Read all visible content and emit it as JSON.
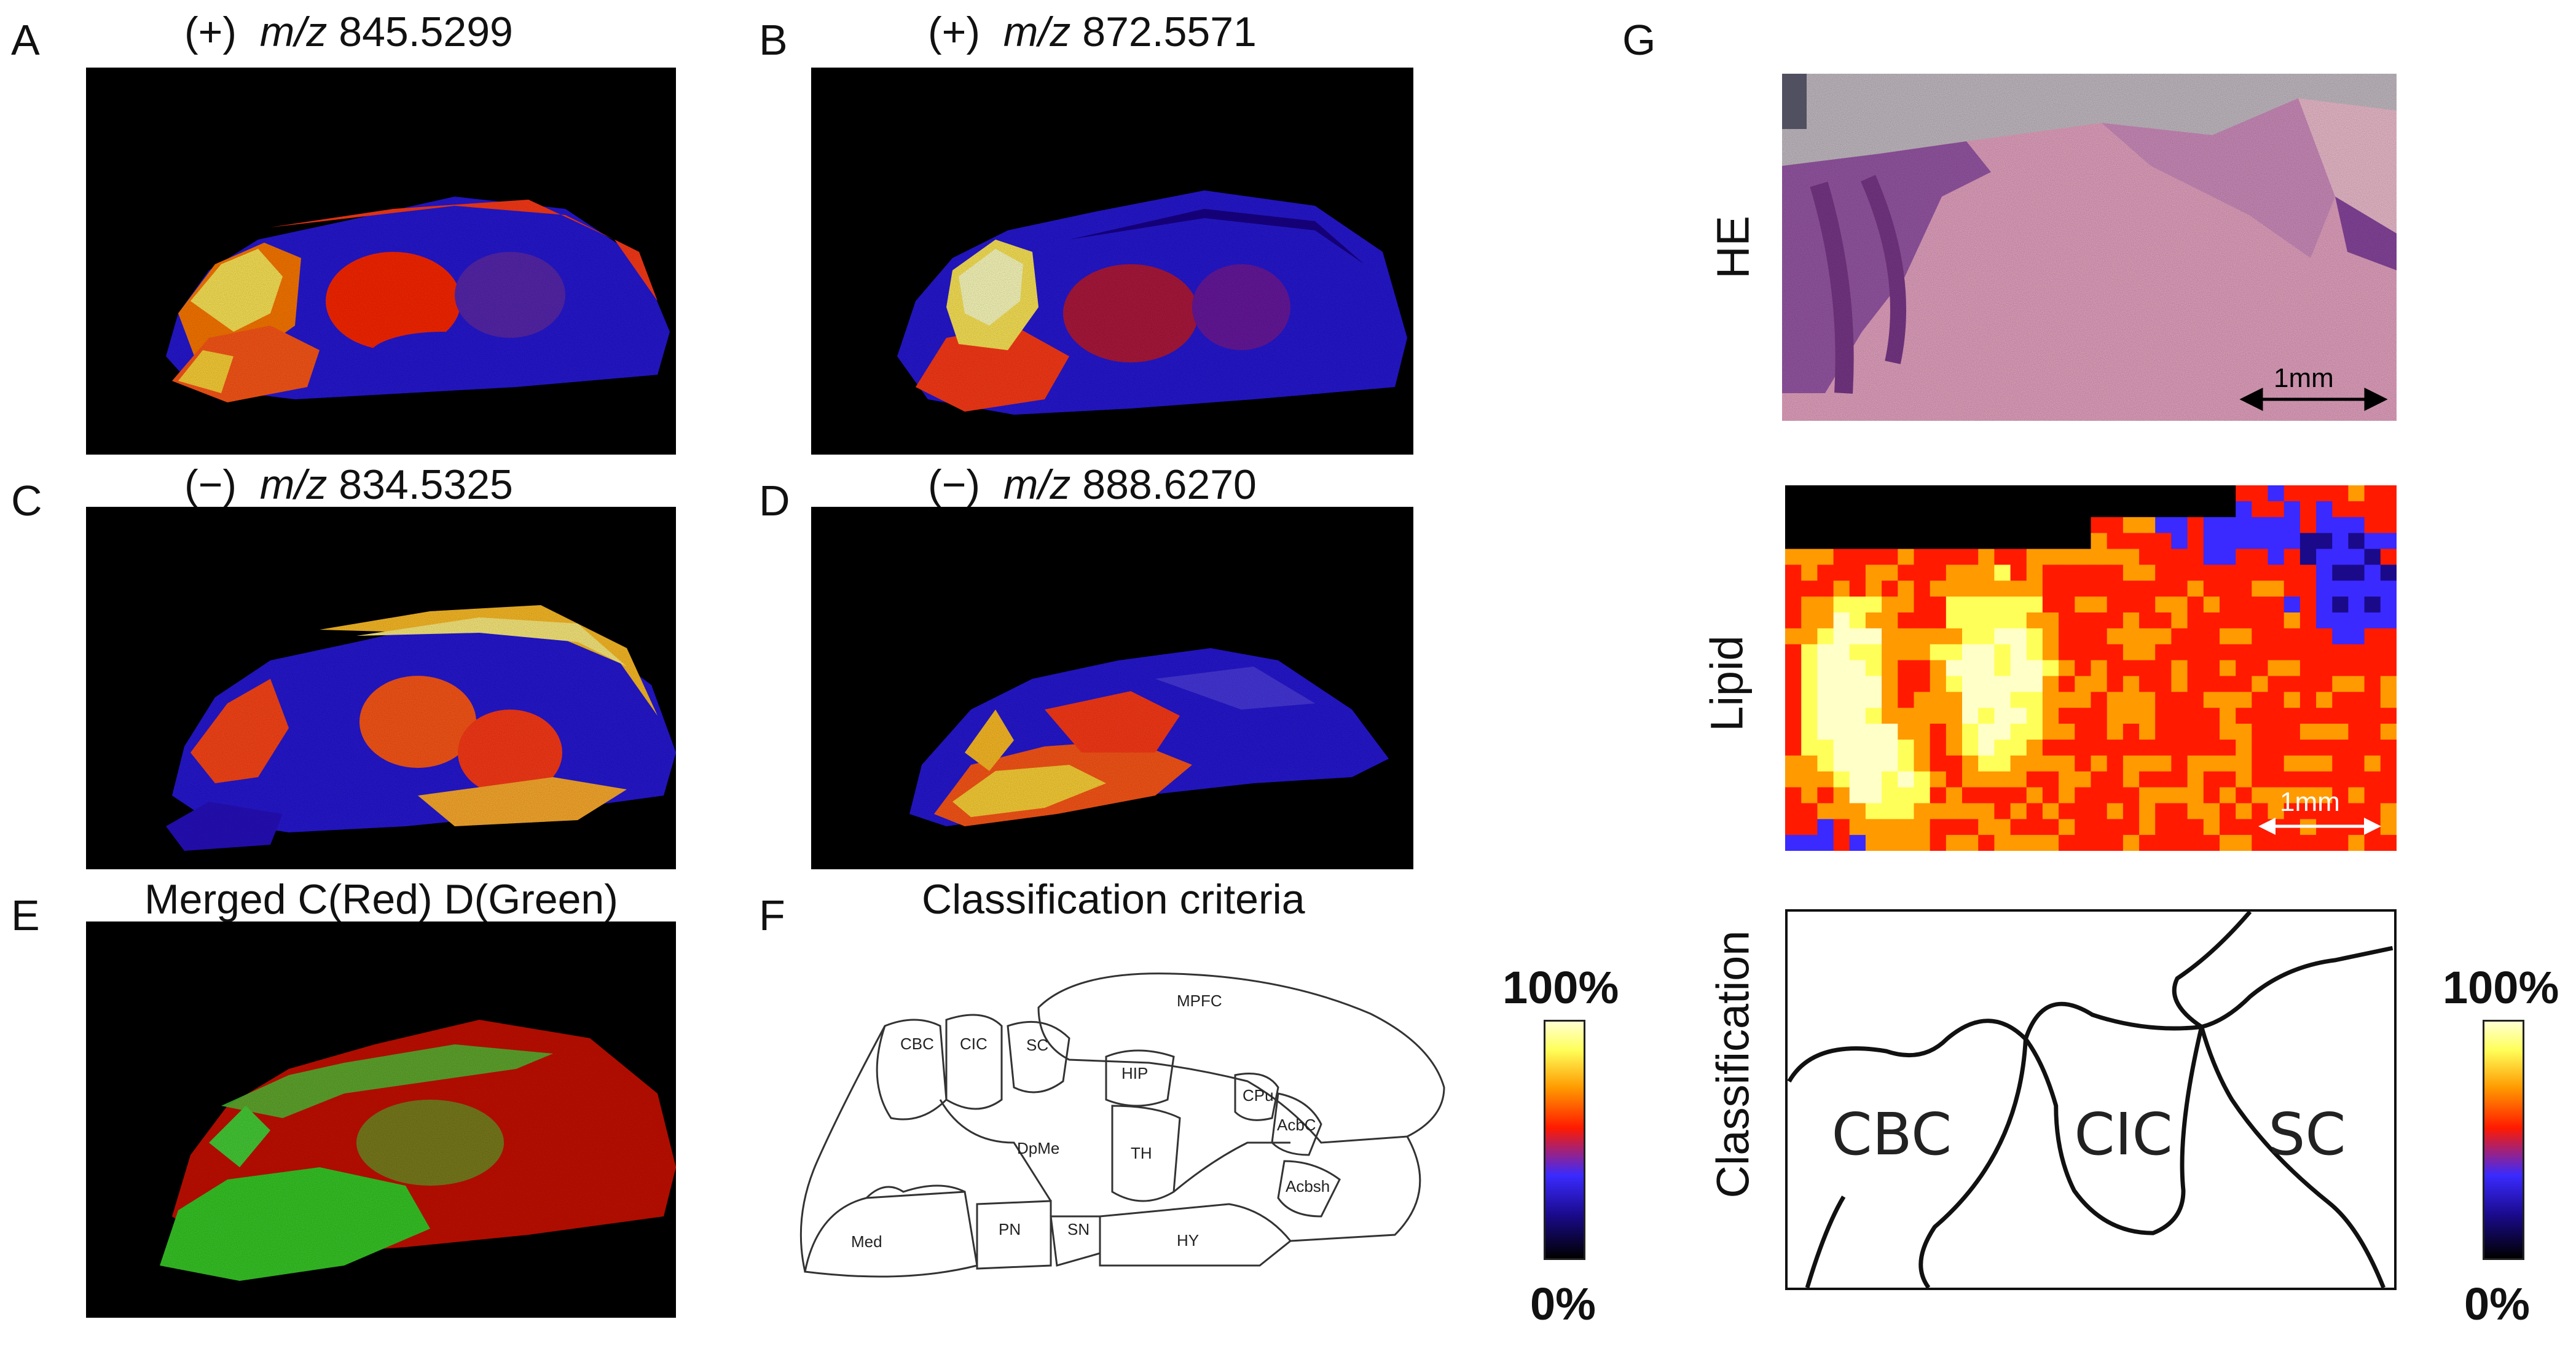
{
  "panels": {
    "A": {
      "letter": "A",
      "polarity": "(+)",
      "mz_label": "m/z",
      "mz_value": "845.5299"
    },
    "B": {
      "letter": "B",
      "polarity": "(+)",
      "mz_label": "m/z",
      "mz_value": "872.5571"
    },
    "C": {
      "letter": "C",
      "polarity": "(−)",
      "mz_label": "m/z",
      "mz_value": "834.5325"
    },
    "D": {
      "letter": "D",
      "polarity": "(−)",
      "mz_label": "m/z",
      "mz_value": "888.6270"
    },
    "E": {
      "letter": "E",
      "title": "Merged  C(Red) D(Green)"
    },
    "F": {
      "letter": "F",
      "title": "Classification criteria"
    },
    "G": {
      "letter": "G"
    }
  },
  "atlas_regions": [
    "MPFC",
    "CBC",
    "CIC",
    "SC",
    "HIP",
    "CPu",
    "DpMe",
    "TH",
    "AcbC",
    "Acbsh",
    "Med",
    "PN",
    "SN",
    "HY"
  ],
  "g_rows": {
    "he": "HE",
    "lipid": "Lipid",
    "classification": "Classification",
    "scalebar_he": "1mm",
    "scalebar_lipid": "1mm",
    "class_regions": [
      "CBC",
      "CIC",
      "SC"
    ]
  },
  "colorbar": {
    "top": "100%",
    "bottom": "0%"
  },
  "colors": {
    "lut": [
      "#000000",
      "#1a0a8a",
      "#3a2aff",
      "#ff1a00",
      "#ff9a00",
      "#ffff5a",
      "#ffffc8"
    ],
    "he_pink": "#e8a6c4",
    "merged_red": "#d81a10",
    "merged_green": "#3acb2a"
  }
}
